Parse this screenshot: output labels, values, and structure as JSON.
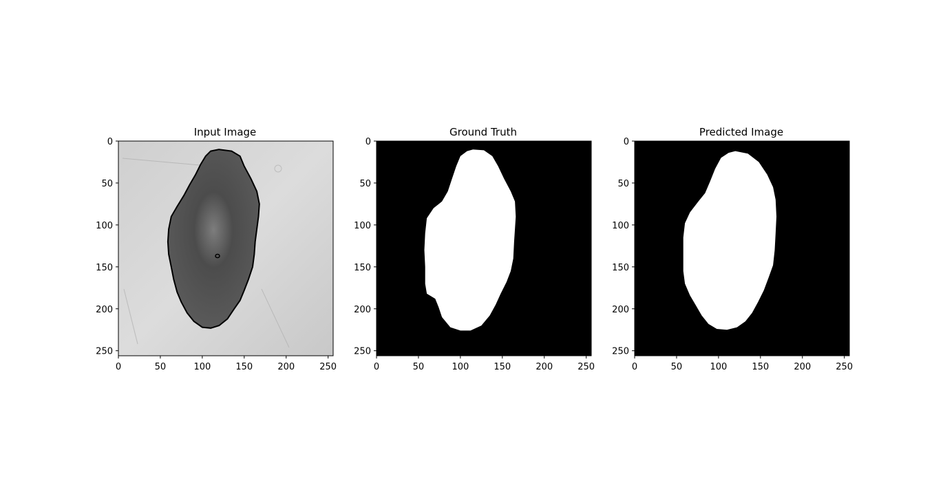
{
  "figure": {
    "background": "#ffffff"
  },
  "chart_data": [
    {
      "type": "image",
      "title": "Input Image",
      "image_kind": "grayscale-dermoscopy-with-contour",
      "xlim": [
        0,
        256
      ],
      "ylim": [
        256,
        0
      ],
      "xticks": [
        0,
        50,
        100,
        150,
        200,
        250
      ],
      "yticks": [
        0,
        50,
        100,
        150,
        200,
        250
      ],
      "lesion_outline": [
        [
          120,
          10
        ],
        [
          135,
          12
        ],
        [
          145,
          18
        ],
        [
          150,
          30
        ],
        [
          158,
          45
        ],
        [
          165,
          60
        ],
        [
          168,
          75
        ],
        [
          167,
          90
        ],
        [
          165,
          105
        ],
        [
          163,
          120
        ],
        [
          162,
          135
        ],
        [
          160,
          150
        ],
        [
          155,
          165
        ],
        [
          150,
          178
        ],
        [
          145,
          190
        ],
        [
          138,
          200
        ],
        [
          130,
          212
        ],
        [
          120,
          220
        ],
        [
          110,
          223
        ],
        [
          100,
          222
        ],
        [
          90,
          215
        ],
        [
          82,
          205
        ],
        [
          75,
          192
        ],
        [
          70,
          180
        ],
        [
          66,
          165
        ],
        [
          63,
          150
        ],
        [
          60,
          135
        ],
        [
          59,
          120
        ],
        [
          60,
          105
        ],
        [
          63,
          90
        ],
        [
          70,
          78
        ],
        [
          78,
          65
        ],
        [
          85,
          52
        ],
        [
          92,
          40
        ],
        [
          98,
          28
        ],
        [
          104,
          18
        ],
        [
          110,
          12
        ]
      ],
      "colors": {
        "skin": "#d2d2d2",
        "lesion": "#5a5a5a",
        "contour": "#000000"
      }
    },
    {
      "type": "image",
      "title": "Ground Truth",
      "image_kind": "binary-mask",
      "xlim": [
        0,
        256
      ],
      "ylim": [
        256,
        0
      ],
      "xticks": [
        0,
        50,
        100,
        150,
        200,
        250
      ],
      "yticks": [
        0,
        50,
        100,
        150,
        200,
        250
      ],
      "mask_outline": [
        [
          115,
          10
        ],
        [
          128,
          11
        ],
        [
          138,
          18
        ],
        [
          145,
          30
        ],
        [
          152,
          45
        ],
        [
          160,
          60
        ],
        [
          165,
          72
        ],
        [
          166,
          90
        ],
        [
          165,
          105
        ],
        [
          164,
          120
        ],
        [
          163,
          140
        ],
        [
          160,
          155
        ],
        [
          155,
          168
        ],
        [
          148,
          182
        ],
        [
          142,
          195
        ],
        [
          135,
          208
        ],
        [
          125,
          220
        ],
        [
          112,
          226
        ],
        [
          100,
          226
        ],
        [
          88,
          222
        ],
        [
          78,
          210
        ],
        [
          74,
          198
        ],
        [
          70,
          188
        ],
        [
          60,
          182
        ],
        [
          58,
          170
        ],
        [
          58,
          150
        ],
        [
          57,
          130
        ],
        [
          58,
          110
        ],
        [
          60,
          92
        ],
        [
          68,
          80
        ],
        [
          78,
          72
        ],
        [
          85,
          60
        ],
        [
          90,
          45
        ],
        [
          95,
          30
        ],
        [
          100,
          18
        ],
        [
          108,
          12
        ]
      ],
      "colors": {
        "background": "#000000",
        "mask": "#ffffff"
      }
    },
    {
      "type": "image",
      "title": "Predicted Image",
      "image_kind": "binary-mask",
      "xlim": [
        0,
        256
      ],
      "ylim": [
        256,
        0
      ],
      "xticks": [
        0,
        50,
        100,
        150,
        200,
        250
      ],
      "yticks": [
        0,
        50,
        100,
        150,
        200,
        250
      ],
      "mask_outline": [
        [
          120,
          12
        ],
        [
          135,
          15
        ],
        [
          148,
          25
        ],
        [
          158,
          40
        ],
        [
          165,
          55
        ],
        [
          168,
          70
        ],
        [
          169,
          90
        ],
        [
          168,
          110
        ],
        [
          167,
          130
        ],
        [
          165,
          148
        ],
        [
          160,
          162
        ],
        [
          154,
          178
        ],
        [
          147,
          192
        ],
        [
          140,
          205
        ],
        [
          132,
          215
        ],
        [
          122,
          222
        ],
        [
          110,
          225
        ],
        [
          98,
          224
        ],
        [
          88,
          218
        ],
        [
          80,
          208
        ],
        [
          73,
          196
        ],
        [
          66,
          184
        ],
        [
          60,
          170
        ],
        [
          58,
          155
        ],
        [
          58,
          135
        ],
        [
          58,
          115
        ],
        [
          60,
          98
        ],
        [
          66,
          85
        ],
        [
          76,
          72
        ],
        [
          84,
          62
        ],
        [
          90,
          48
        ],
        [
          96,
          33
        ],
        [
          103,
          20
        ],
        [
          112,
          14
        ]
      ],
      "colors": {
        "background": "#000000",
        "mask": "#ffffff"
      }
    }
  ]
}
